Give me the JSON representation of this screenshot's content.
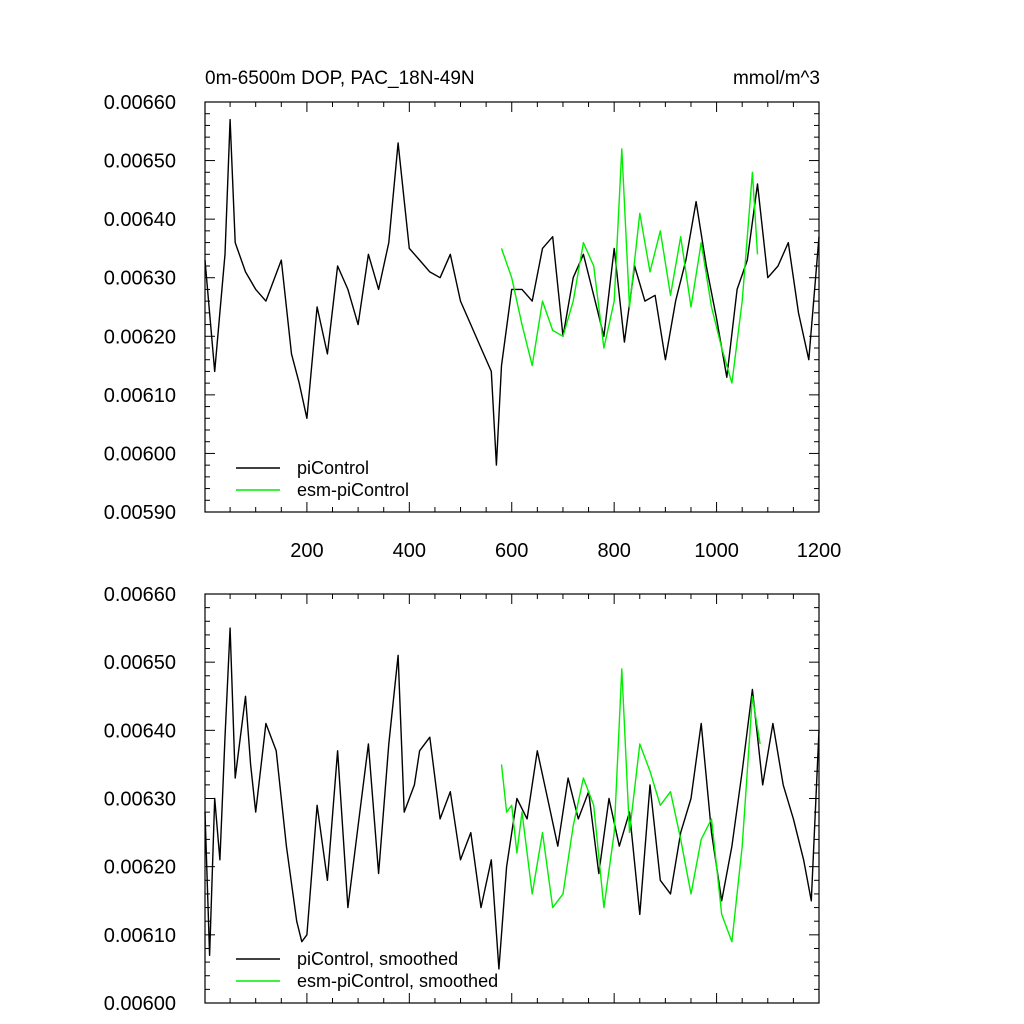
{
  "chart_data": [
    {
      "type": "line",
      "title": "0m-6500m DOP, PAC_18N-49N",
      "units": "mmol/m^3",
      "xlim": [
        1,
        1200
      ],
      "ylim": [
        0.0059,
        0.0066
      ],
      "x_ticks": [
        200,
        400,
        600,
        800,
        1000,
        1200
      ],
      "y_ticks": [
        "0.00590",
        "0.00600",
        "0.00610",
        "0.00620",
        "0.00630",
        "0.00640",
        "0.00650",
        "0.00660"
      ],
      "grid": false,
      "legend_position": "bottom-left",
      "series": [
        {
          "name": "piControl",
          "color": "#000000",
          "x": [
            1,
            20,
            40,
            50,
            60,
            80,
            100,
            120,
            150,
            170,
            185,
            200,
            220,
            240,
            260,
            280,
            300,
            320,
            340,
            360,
            378,
            400,
            420,
            440,
            460,
            480,
            500,
            520,
            540,
            560,
            570,
            580,
            600,
            620,
            640,
            660,
            680,
            700,
            720,
            740,
            760,
            780,
            800,
            820,
            840,
            860,
            880,
            900,
            920,
            940,
            960,
            980,
            1000,
            1020,
            1040,
            1060,
            1080,
            1100,
            1120,
            1140,
            1160,
            1180,
            1200
          ],
          "y": [
            0.00633,
            0.00614,
            0.00634,
            0.00657,
            0.00636,
            0.00631,
            0.00628,
            0.00626,
            0.00633,
            0.00617,
            0.00612,
            0.00606,
            0.00625,
            0.00617,
            0.00632,
            0.00628,
            0.00622,
            0.00634,
            0.00628,
            0.00636,
            0.00653,
            0.00635,
            0.00633,
            0.00631,
            0.0063,
            0.00634,
            0.00626,
            0.00622,
            0.00618,
            0.00614,
            0.00598,
            0.00615,
            0.00628,
            0.00628,
            0.00626,
            0.00635,
            0.00637,
            0.0062,
            0.0063,
            0.00634,
            0.00627,
            0.0062,
            0.00635,
            0.00619,
            0.00632,
            0.00626,
            0.00627,
            0.00616,
            0.00626,
            0.00633,
            0.00643,
            0.00632,
            0.00623,
            0.00613,
            0.00628,
            0.00633,
            0.00646,
            0.0063,
            0.00632,
            0.00636,
            0.00624,
            0.00616,
            0.00637
          ]
        },
        {
          "name": "esm-piControl",
          "color": "#00ee00",
          "x": [
            580,
            600,
            620,
            640,
            660,
            680,
            700,
            720,
            740,
            760,
            780,
            800,
            815,
            830,
            850,
            870,
            890,
            910,
            930,
            950,
            970,
            990,
            1010,
            1030,
            1050,
            1070,
            1080
          ],
          "y": [
            0.00635,
            0.0063,
            0.00622,
            0.00615,
            0.00626,
            0.00621,
            0.0062,
            0.00626,
            0.00636,
            0.00632,
            0.00618,
            0.00626,
            0.00652,
            0.00625,
            0.00641,
            0.00631,
            0.00638,
            0.00627,
            0.00637,
            0.00625,
            0.00636,
            0.00625,
            0.00618,
            0.00612,
            0.00626,
            0.00648,
            0.00634
          ]
        }
      ]
    },
    {
      "type": "line",
      "title": "",
      "units": "",
      "xlim": [
        1,
        1200
      ],
      "ylim": [
        0.006,
        0.0066
      ],
      "y_ticks": [
        "0.00600",
        "0.00610",
        "0.00620",
        "0.00630",
        "0.00640",
        "0.00650",
        "0.00660"
      ],
      "grid": false,
      "legend_position": "bottom-left",
      "series": [
        {
          "name": "piControl, smoothed",
          "color": "#000000",
          "x": [
            1,
            10,
            20,
            30,
            40,
            50,
            60,
            80,
            90,
            100,
            120,
            140,
            160,
            180,
            190,
            200,
            220,
            240,
            260,
            280,
            300,
            320,
            340,
            360,
            378,
            390,
            410,
            420,
            440,
            460,
            480,
            500,
            520,
            540,
            560,
            575,
            590,
            610,
            630,
            650,
            670,
            690,
            710,
            730,
            750,
            770,
            790,
            810,
            830,
            850,
            870,
            890,
            910,
            930,
            950,
            970,
            990,
            1010,
            1030,
            1050,
            1070,
            1090,
            1110,
            1130,
            1150,
            1170,
            1185,
            1200
          ],
          "y": [
            0.00628,
            0.00607,
            0.0063,
            0.00621,
            0.00639,
            0.00655,
            0.00633,
            0.00645,
            0.00635,
            0.00628,
            0.00641,
            0.00637,
            0.00623,
            0.00612,
            0.00609,
            0.0061,
            0.00629,
            0.00618,
            0.00637,
            0.00614,
            0.00626,
            0.00638,
            0.00619,
            0.00638,
            0.00651,
            0.00628,
            0.00632,
            0.00637,
            0.00639,
            0.00627,
            0.00631,
            0.00621,
            0.00625,
            0.00614,
            0.00621,
            0.00605,
            0.0062,
            0.0063,
            0.00627,
            0.00637,
            0.0063,
            0.00623,
            0.00633,
            0.00627,
            0.00631,
            0.00619,
            0.0063,
            0.00623,
            0.00628,
            0.00613,
            0.00632,
            0.00618,
            0.00616,
            0.00625,
            0.0063,
            0.00641,
            0.00625,
            0.00615,
            0.00623,
            0.00634,
            0.00646,
            0.00632,
            0.00641,
            0.00632,
            0.00627,
            0.00621,
            0.00615,
            0.0064
          ]
        },
        {
          "name": "esm-piControl, smoothed",
          "color": "#00ee00",
          "x": [
            580,
            590,
            600,
            610,
            620,
            640,
            660,
            680,
            700,
            720,
            740,
            760,
            780,
            800,
            815,
            830,
            850,
            870,
            890,
            910,
            930,
            950,
            970,
            990,
            1010,
            1030,
            1050,
            1070,
            1085
          ],
          "y": [
            0.00635,
            0.00628,
            0.00629,
            0.00622,
            0.00628,
            0.00616,
            0.00625,
            0.00614,
            0.00616,
            0.00626,
            0.00633,
            0.00629,
            0.00614,
            0.00625,
            0.00649,
            0.00625,
            0.00638,
            0.00634,
            0.00629,
            0.00631,
            0.00624,
            0.00616,
            0.00624,
            0.00627,
            0.00613,
            0.00609,
            0.00623,
            0.00645,
            0.00638
          ]
        }
      ]
    }
  ]
}
